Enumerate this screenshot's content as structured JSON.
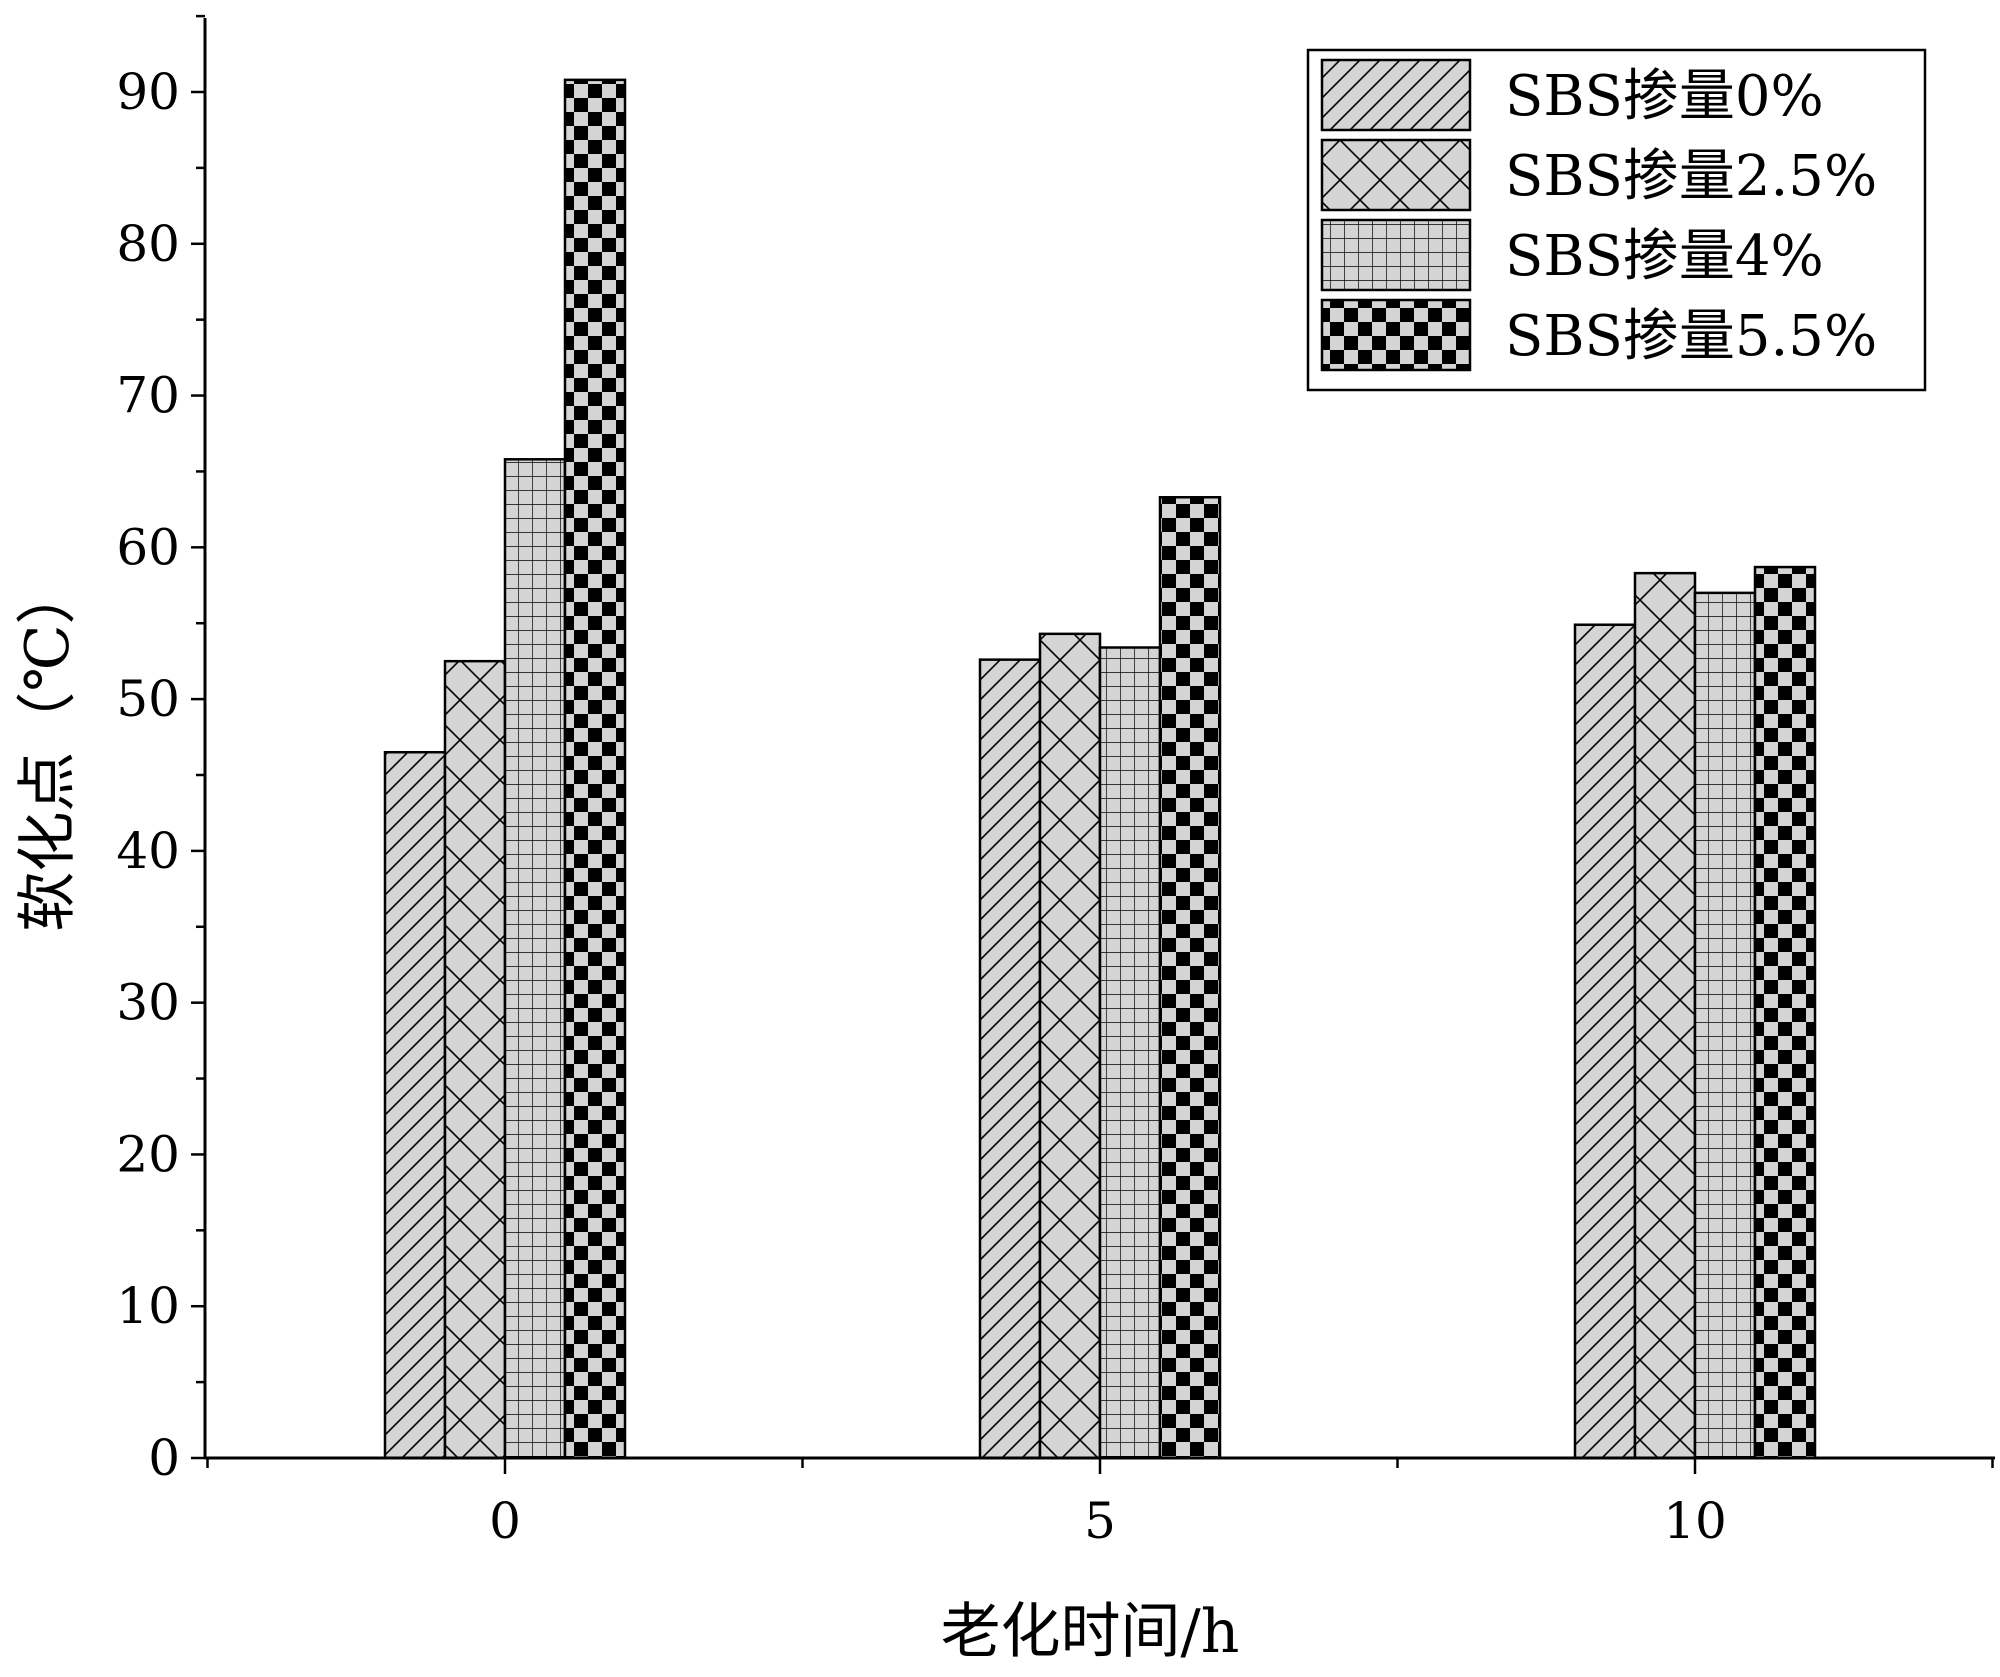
{
  "chart_data": {
    "type": "bar",
    "title": "",
    "xlabel": "老化时间/h",
    "ylabel": "软化点（℃）",
    "categories": [
      "0",
      "5",
      "10"
    ],
    "ylim": [
      0,
      95
    ],
    "yticks": [
      "0",
      "10",
      "20",
      "30",
      "40",
      "50",
      "60",
      "70",
      "80",
      "90"
    ],
    "grid": false,
    "legend_position": "top-right",
    "series": [
      {
        "name": "SBS掺量0%",
        "pattern": "diagonal-hatch",
        "values": [
          46.5,
          52.6,
          54.9
        ]
      },
      {
        "name": "SBS掺量2.5%",
        "pattern": "cross-hatch",
        "values": [
          52.5,
          54.3,
          58.3
        ]
      },
      {
        "name": "SBS掺量4%",
        "pattern": "grid",
        "values": [
          65.8,
          53.4,
          57.0
        ]
      },
      {
        "name": "SBS掺量5.5%",
        "pattern": "checkerboard",
        "values": [
          90.8,
          63.3,
          58.7
        ]
      }
    ],
    "colors": {
      "bar_fill": "#d4d4d4",
      "stroke": "#000000",
      "background": "#ffffff"
    }
  }
}
